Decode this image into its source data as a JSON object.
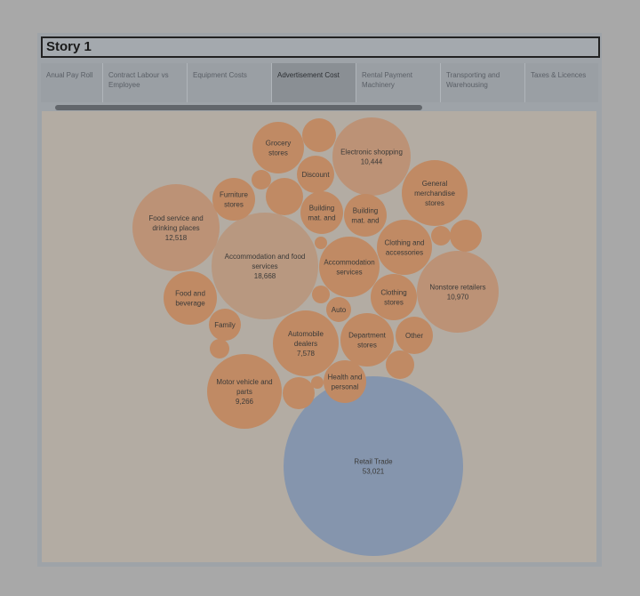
{
  "story": {
    "title": "Story 1"
  },
  "tabs": [
    {
      "label": "Anual Pay Roll",
      "active": false
    },
    {
      "label": "Contract Labour vs Employee",
      "active": false
    },
    {
      "label": "Equipment Costs",
      "active": false
    },
    {
      "label": "Advertisement Cost",
      "active": true
    },
    {
      "label": "Rental Payment Machinery",
      "active": false
    },
    {
      "label": "Transporting and Warehousing",
      "active": false
    },
    {
      "label": "Taxes & Licences",
      "active": false
    }
  ],
  "colors": {
    "orange": "#c08a64",
    "orange_dim": "#b89880",
    "blue": "#8595ad"
  },
  "chart_data": {
    "type": "bubble",
    "series": [
      {
        "lines": [
          "Retail Trade"
        ],
        "value": "53,021",
        "color": "#8595ad"
      },
      {
        "lines": [
          "Accommodation and food",
          "services"
        ],
        "value": "18,668",
        "color": "#b89880"
      },
      {
        "lines": [
          "Food service and",
          "drinking places"
        ],
        "value": "12,518",
        "color": "#bc9276"
      },
      {
        "lines": [
          "Nonstore retailers"
        ],
        "value": "10,970",
        "color": "#bc9276"
      },
      {
        "lines": [
          "Electronic shopping"
        ],
        "value": "10,444",
        "color": "#bc9276"
      },
      {
        "lines": [
          "Motor vehicle and",
          "parts"
        ],
        "value": "9,266",
        "color": "#c08a64"
      },
      {
        "lines": [
          "Automobile",
          "dealers"
        ],
        "value": "7,578",
        "color": "#c08a64"
      },
      {
        "lines": [
          "General",
          "merchandise",
          "stores"
        ],
        "value": "",
        "color": "#c08a64"
      },
      {
        "lines": [
          "Clothing and",
          "accessories"
        ],
        "value": "",
        "color": "#c08a64"
      },
      {
        "lines": [
          "Accommodation",
          "services"
        ],
        "value": "",
        "color": "#c08a64"
      },
      {
        "lines": [
          "Department",
          "stores"
        ],
        "value": "",
        "color": "#c08a64"
      },
      {
        "lines": [
          "Food and",
          "beverage"
        ],
        "value": "",
        "color": "#c08a64"
      },
      {
        "lines": [
          "Clothing",
          "stores"
        ],
        "value": "",
        "color": "#c08a64"
      },
      {
        "lines": [
          "Grocery",
          "stores"
        ],
        "value": "",
        "color": "#c08a64"
      },
      {
        "lines": [
          "Health and",
          "personal"
        ],
        "value": "",
        "color": "#c08a64"
      },
      {
        "lines": [
          "Building",
          "mat. and"
        ],
        "value": "",
        "color": "#c08a64"
      },
      {
        "lines": [
          "Building",
          "mat. and"
        ],
        "value": "",
        "color": "#c08a64"
      },
      {
        "lines": [
          "Furniture",
          "stores"
        ],
        "value": "",
        "color": "#c08a64"
      },
      {
        "lines": [
          "Discount"
        ],
        "value": "",
        "color": "#c08a64"
      },
      {
        "lines": [
          "Other"
        ],
        "value": "",
        "color": "#c08a64"
      },
      {
        "lines": [
          "Family"
        ],
        "value": "",
        "color": "#c08a64"
      },
      {
        "lines": [
          "Auto"
        ],
        "value": "",
        "color": "#c08a64"
      },
      {
        "lines": [],
        "value": "",
        "color": "#c08a64"
      },
      {
        "lines": [],
        "value": "",
        "color": "#c08a64"
      },
      {
        "lines": [],
        "value": "",
        "color": "#c08a64"
      },
      {
        "lines": [],
        "value": "",
        "color": "#c08a64"
      },
      {
        "lines": [],
        "value": "",
        "color": "#c08a64"
      },
      {
        "lines": [],
        "value": "",
        "color": "#c08a64"
      },
      {
        "lines": [],
        "value": "",
        "color": "#c08a64"
      },
      {
        "lines": [],
        "value": "",
        "color": "#c08a64"
      },
      {
        "lines": [],
        "value": "",
        "color": "#c08a64"
      },
      {
        "lines": [],
        "value": "",
        "color": "#c08a64"
      },
      {
        "lines": [],
        "value": "",
        "color": "#c08a64"
      }
    ]
  }
}
